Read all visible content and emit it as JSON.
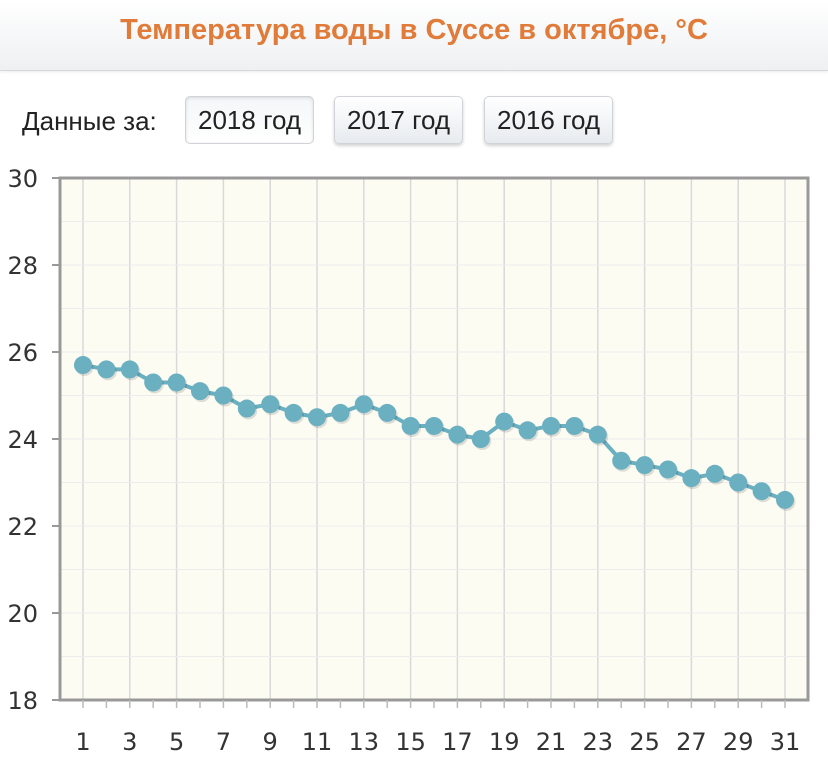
{
  "header": {
    "title": "Температура воды в Суссе в октябре, °C"
  },
  "controls": {
    "label": "Данные за:",
    "years": [
      {
        "label": "2018 год",
        "active": true
      },
      {
        "label": "2017 год",
        "active": false
      },
      {
        "label": "2016 год",
        "active": false
      }
    ]
  },
  "chart_data": {
    "type": "line",
    "title": "Температура воды в Суссе в октябре, °C",
    "xlabel": "",
    "ylabel": "",
    "x": [
      1,
      2,
      3,
      4,
      5,
      6,
      7,
      8,
      9,
      10,
      11,
      12,
      13,
      14,
      15,
      16,
      17,
      18,
      19,
      20,
      21,
      22,
      23,
      24,
      25,
      26,
      27,
      28,
      29,
      30,
      31
    ],
    "x_tick_labels": [
      "1",
      "3",
      "5",
      "7",
      "9",
      "11",
      "13",
      "15",
      "17",
      "19",
      "21",
      "23",
      "25",
      "27",
      "29",
      "31"
    ],
    "y_tick_labels": [
      "30",
      "28",
      "26",
      "24",
      "22",
      "20",
      "18"
    ],
    "ylim": [
      18,
      30
    ],
    "grid": true,
    "series": [
      {
        "values": [
          25.7,
          25.6,
          25.6,
          25.3,
          25.3,
          25.1,
          25.0,
          24.7,
          24.8,
          24.6,
          24.5,
          24.6,
          24.8,
          24.6,
          24.3,
          24.3,
          24.1,
          24.0,
          24.4,
          24.2,
          24.3,
          24.3,
          24.1,
          23.5,
          23.4,
          23.3,
          23.1,
          23.2,
          23.0,
          22.8,
          22.6
        ]
      }
    ],
    "colors": {
      "line": "#6ab0c1",
      "marker": "#6ab0c1",
      "plot_bg": "#fdfcf3",
      "grid": "#d9d9d9",
      "axis": "#999999"
    }
  }
}
